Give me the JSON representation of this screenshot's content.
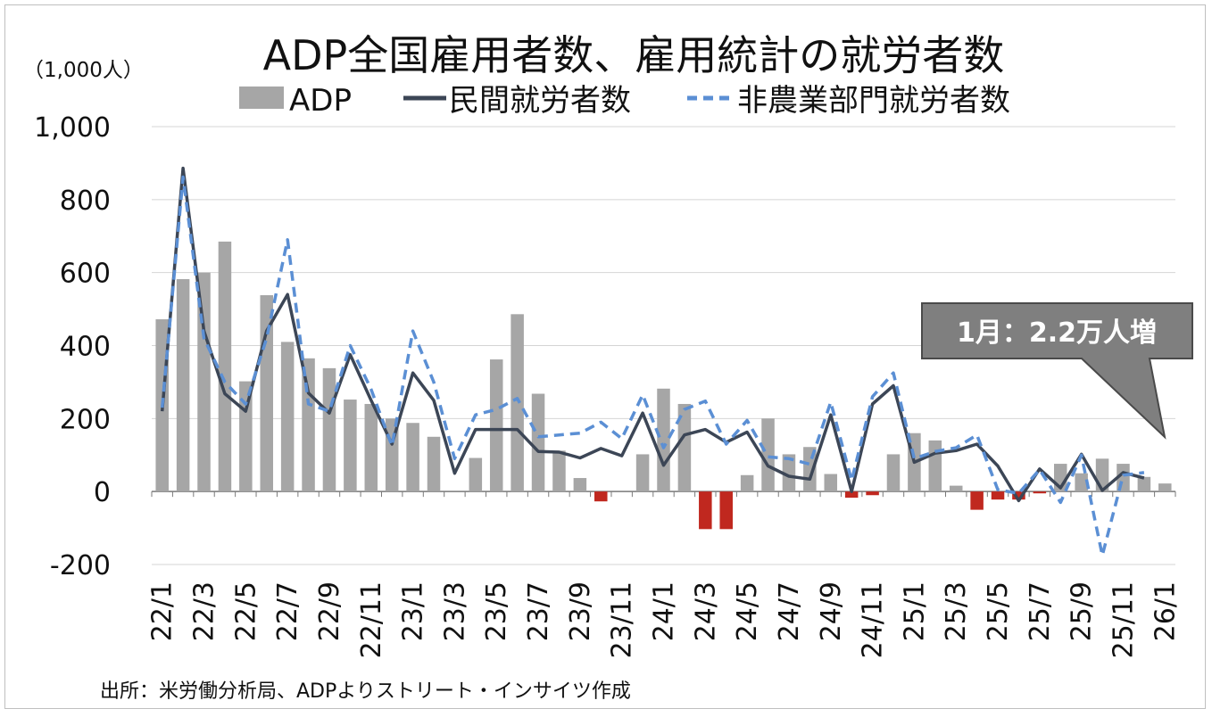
{
  "chart_data": {
    "type": "bar",
    "title": "ADP全国雇用者数、雇用統計の就労者数",
    "unit_label": "（1,000人）",
    "source": "出所：米労働分析局、ADPよりストリート・インサイツ作成",
    "callout": "1月：2.2万人増",
    "ylim": [
      -200,
      1000
    ],
    "yticks": [
      1000,
      800,
      600,
      400,
      200,
      0,
      -200
    ],
    "ytick_labels": [
      "1,000",
      "800",
      "600",
      "400",
      "200",
      "0",
      "-200"
    ],
    "grid": true,
    "legend_position": "top",
    "categories": [
      "22/1",
      "22/2",
      "22/3",
      "22/4",
      "22/5",
      "22/6",
      "22/7",
      "22/8",
      "22/9",
      "22/10",
      "22/11",
      "22/12",
      "23/1",
      "23/2",
      "23/3",
      "23/4",
      "23/5",
      "23/6",
      "23/7",
      "23/8",
      "23/9",
      "23/10",
      "23/11",
      "23/12",
      "24/1",
      "24/2",
      "24/3",
      "24/4",
      "24/5",
      "24/6",
      "24/7",
      "24/8",
      "24/9",
      "24/10",
      "24/11",
      "24/12",
      "25/1",
      "25/2",
      "25/3",
      "25/4",
      "25/5",
      "25/6",
      "25/7",
      "25/8",
      "25/9",
      "25/10",
      "25/11",
      "25/12",
      "26/1"
    ],
    "x_tick_labels": [
      "22/1",
      "22/3",
      "22/5",
      "22/7",
      "22/9",
      "22/11",
      "23/1",
      "23/3",
      "23/5",
      "23/7",
      "23/9",
      "23/11",
      "24/1",
      "24/3",
      "24/5",
      "24/7",
      "24/9",
      "24/11",
      "25/1",
      "25/3",
      "25/5",
      "25/7",
      "25/9",
      "25/11",
      "26/1"
    ],
    "series": [
      {
        "name": "ADP",
        "type": "bar",
        "color": "#a6a6a6",
        "negative_color": "#c0281f",
        "values": [
          472,
          582,
          600,
          685,
          302,
          538,
          410,
          365,
          338,
          252,
          240,
          200,
          188,
          150,
          null,
          92,
          362,
          486,
          268,
          112,
          37,
          -27,
          null,
          102,
          282,
          240,
          -103,
          -103,
          45,
          200,
          102,
          122,
          48,
          -17,
          -10,
          102,
          160,
          140,
          16,
          -50,
          -22,
          -22,
          -5,
          76,
          50,
          90,
          76,
          40,
          22
        ]
      },
      {
        "name": "民間就労者数",
        "type": "line",
        "color": "#3c4656",
        "values": [
          220,
          886,
          440,
          268,
          220,
          440,
          540,
          270,
          215,
          375,
          250,
          130,
          325,
          250,
          50,
          170,
          170,
          170,
          110,
          108,
          92,
          118,
          98,
          215,
          72,
          155,
          170,
          135,
          163,
          70,
          42,
          34,
          210,
          0,
          240,
          290,
          80,
          105,
          112,
          130,
          70,
          -25,
          62,
          10,
          102,
          3,
          52,
          37,
          null
        ]
      },
      {
        "name": "非農業部門就労者数",
        "type": "line",
        "color": "#5b8fd4",
        "values": [
          230,
          862,
          420,
          300,
          240,
          420,
          690,
          240,
          220,
          400,
          280,
          125,
          440,
          300,
          90,
          210,
          225,
          255,
          150,
          155,
          160,
          190,
          145,
          265,
          120,
          225,
          248,
          130,
          195,
          95,
          90,
          75,
          245,
          30,
          260,
          325,
          90,
          110,
          120,
          155,
          5,
          -5,
          60,
          -30,
          100,
          -175,
          45,
          52,
          null
        ]
      }
    ]
  }
}
